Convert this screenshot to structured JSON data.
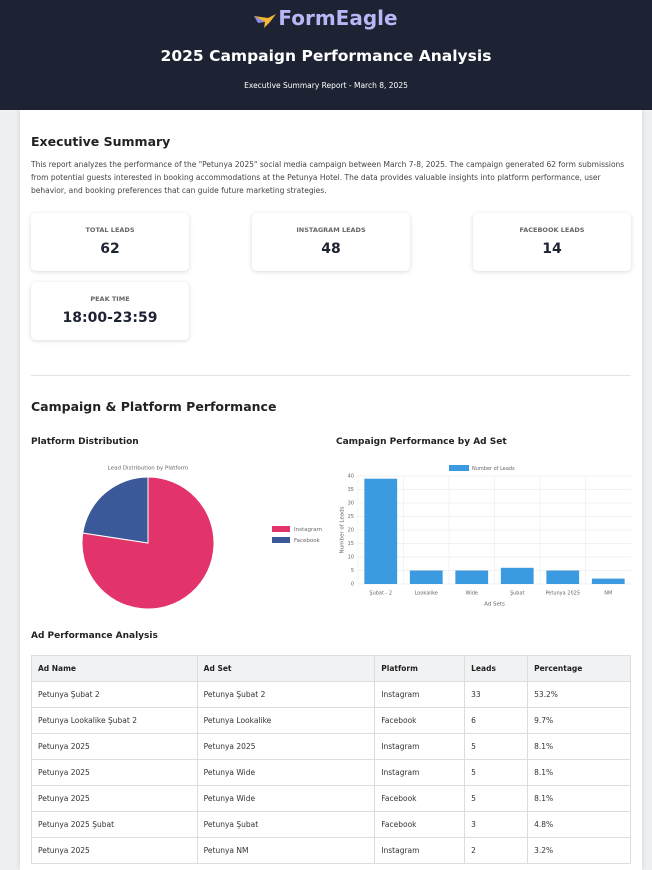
{
  "header": {
    "logo": "FormEagle",
    "title": "2025 Campaign Performance Analysis",
    "subtitle": "Executive Summary Report - March 8, 2025"
  },
  "summary": {
    "heading": "Executive Summary",
    "text": "This report analyzes the performance of the \"Petunya 2025\" social media campaign between March 7-8, 2025. The campaign generated 62 form submissions from potential guests interested in booking accommodations at the Petunya Hotel. The data provides valuable insights into platform performance, user behavior, and booking preferences that can guide future marketing strategies."
  },
  "kpis": [
    {
      "label": "Total Leads",
      "value": 62
    },
    {
      "label": "Instagram Leads",
      "value": 48
    },
    {
      "label": "Facebook Leads",
      "value": 14
    },
    {
      "label": "Peak Time",
      "value": "18:00-23:59"
    }
  ],
  "performance": {
    "heading": "Campaign & Platform Performance",
    "left_heading": "Platform Distribution",
    "right_heading": "Campaign Performance by Ad Set"
  },
  "chart_data": [
    {
      "type": "pie",
      "title": "Lead Distribution by Platform",
      "categories": [
        "Instagram",
        "Facebook"
      ],
      "values": [
        48,
        14
      ],
      "colors": [
        "#e2336b",
        "#3b5998"
      ]
    },
    {
      "type": "bar",
      "x_label": "Ad Sets",
      "y_label": "Number of Leads",
      "categories": [
        "Şubat - 2",
        "Lookalike",
        "Wide",
        "Şubat",
        "Petunya 2025",
        "NM"
      ],
      "series": [
        {
          "name": "Number of Leads",
          "color": "#3c9ae0",
          "values": [
            39,
            5,
            5,
            6,
            5,
            2
          ]
        }
      ],
      "ylim": [
        0,
        40
      ],
      "yticks": [
        0,
        5,
        10,
        15,
        20,
        25,
        30,
        35,
        40
      ],
      "grid": true
    }
  ],
  "table": {
    "heading": "Ad Performance Analysis",
    "columns": [
      "Ad Name",
      "Ad Set",
      "Platform",
      "Leads",
      "Percentage"
    ],
    "rows": [
      [
        "Petunya Şubat 2",
        "Petunya Şubat 2",
        "Instagram",
        33,
        "53.2%"
      ],
      [
        "Petunya Lookalike Şubat 2",
        "Petunya Lookalike",
        "Facebook",
        6,
        "9.7%"
      ],
      [
        "Petunya 2025",
        "Petunya 2025",
        "Instagram",
        5,
        "8.1%"
      ],
      [
        "Petunya 2025",
        "Petunya Wide",
        "Instagram",
        5,
        "8.1%"
      ],
      [
        "Petunya 2025",
        "Petunya Wide",
        "Facebook",
        5,
        "8.1%"
      ],
      [
        "Petunya 2025 Şubat",
        "Petunya Şubat",
        "Facebook",
        3,
        "4.8%"
      ],
      [
        "Petunya 2025",
        "Petunya NM",
        "Instagram",
        2,
        "3.2%"
      ]
    ]
  }
}
